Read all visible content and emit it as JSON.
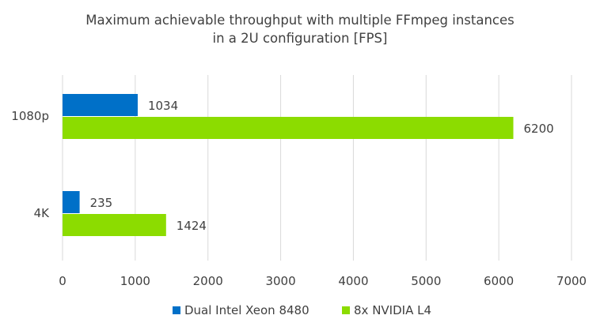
{
  "chart_data": {
    "type": "bar",
    "orientation": "horizontal",
    "title_lines": [
      "Maximum achievable throughput with multiple FFmpeg instances",
      "in a 2U configuration [FPS]"
    ],
    "categories": [
      "1080p",
      "4K"
    ],
    "series": [
      {
        "name": "Dual Intel Xeon 8480",
        "color": "#0070c8",
        "values": [
          1034,
          235
        ]
      },
      {
        "name": "8x NVIDIA L4",
        "color": "#8cdc00",
        "values": [
          6200,
          1424
        ]
      }
    ],
    "xlim": [
      0,
      7000
    ],
    "xticks": [
      0,
      1000,
      2000,
      3000,
      4000,
      5000,
      6000,
      7000
    ],
    "grid": true,
    "legend": "bottom",
    "xlabel": "",
    "ylabel": ""
  }
}
